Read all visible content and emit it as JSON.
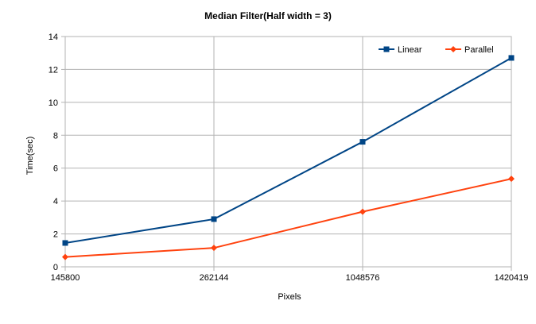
{
  "chart_data": {
    "type": "line",
    "title": "Median Filter(Half width = 3)",
    "xlabel": "Pixels",
    "ylabel": "Time(sec)",
    "categories": [
      "145800",
      "262144",
      "1048576",
      "1420419"
    ],
    "ylim": [
      0,
      14
    ],
    "yticks": [
      "0",
      "2",
      "4",
      "6",
      "8",
      "10",
      "12",
      "14"
    ],
    "grid": true,
    "legend_position": "top-right",
    "series": [
      {
        "name": "Linear",
        "color": "#004586",
        "marker": "square",
        "values": [
          1.45,
          2.9,
          7.6,
          12.7
        ]
      },
      {
        "name": "Parallel",
        "color": "#ff420e",
        "marker": "diamond",
        "values": [
          0.6,
          1.15,
          3.35,
          5.35
        ]
      }
    ]
  }
}
